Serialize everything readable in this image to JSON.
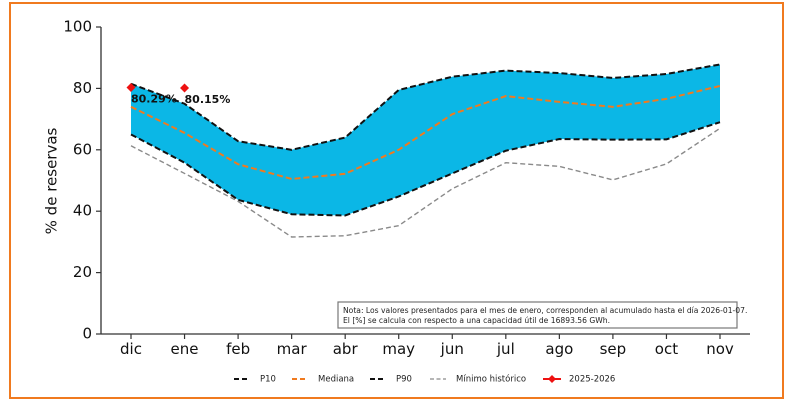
{
  "chart_data": {
    "type": "area",
    "title": "",
    "xlabel": "",
    "ylabel": "% de reservas",
    "ylim": [
      0,
      100
    ],
    "yticks": [
      0,
      20,
      40,
      60,
      80,
      100
    ],
    "categories": [
      "dic",
      "ene",
      "feb",
      "mar",
      "abr",
      "may",
      "jun",
      "jul",
      "ago",
      "sep",
      "oct",
      "nov"
    ],
    "band_color": "#0bb7e6",
    "series": [
      {
        "name": "P10",
        "key": "p10",
        "color": "#111111",
        "style": "dashed",
        "values": [
          65.0,
          55.8,
          43.7,
          39.0,
          38.6,
          44.8,
          52.3,
          59.7,
          63.5,
          63.3,
          63.4,
          69.0
        ]
      },
      {
        "name": "Mediana",
        "key": "mediana",
        "color": "#f07a1f",
        "style": "dashed",
        "values": [
          74.0,
          65.5,
          55.3,
          50.5,
          52.2,
          60.0,
          71.6,
          77.5,
          75.6,
          74.0,
          76.6,
          80.8
        ]
      },
      {
        "name": "P90",
        "key": "p90",
        "color": "#111111",
        "style": "dashed",
        "values": [
          81.5,
          75.0,
          62.8,
          60.0,
          64.0,
          79.5,
          83.8,
          85.8,
          85.0,
          83.4,
          84.7,
          87.8
        ]
      },
      {
        "name": "Mínimo histórico",
        "key": "minimo",
        "color": "#8a8a8a",
        "style": "dashed-thin",
        "values": [
          61.3,
          52.3,
          43.2,
          31.6,
          32.0,
          35.3,
          47.3,
          55.8,
          54.6,
          50.2,
          55.4,
          67.0
        ]
      },
      {
        "name": "2025-2026",
        "key": "actual",
        "color": "#ee1111",
        "style": "marker",
        "values": [
          80.29,
          80.15,
          null,
          null,
          null,
          null,
          null,
          null,
          null,
          null,
          null,
          null
        ]
      }
    ],
    "annotations": [
      {
        "category": "dic",
        "text": "80.29%"
      },
      {
        "category": "ene",
        "text": "80.15%"
      }
    ],
    "note": {
      "line1": "Nota: Los valores presentados para el mes de enero, corresponden al acumulado hasta el día 2026-01-07.",
      "line2": "El [%] se calcula con respecto a una capacidad útil de 16893.56 GWh."
    },
    "legend": {
      "placement": "bottom-center",
      "entries": [
        "P10",
        "Mediana",
        "P90",
        "Mínimo histórico",
        "2025-2026"
      ]
    },
    "grid": false
  }
}
